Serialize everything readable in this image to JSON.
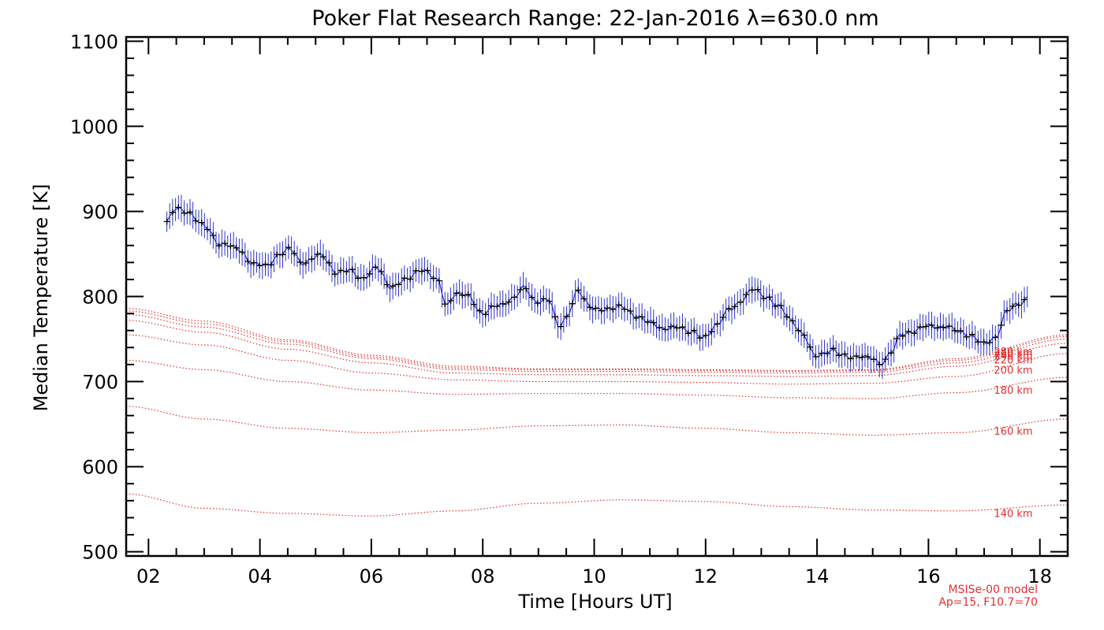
{
  "chart_data": {
    "type": "line",
    "title": "Poker Flat Research Range: 22-Jan-2016 λ=630.0 nm",
    "xlabel": "Time [Hours UT]",
    "ylabel": "Median Temperature [K]",
    "xlim": [
      1.6,
      18.5
    ],
    "ylim": [
      495,
      1105
    ],
    "x_ticks": [
      2,
      4,
      6,
      8,
      10,
      12,
      14,
      16,
      18
    ],
    "x_tick_labels": [
      "02",
      "04",
      "06",
      "08",
      "10",
      "12",
      "14",
      "16",
      "18"
    ],
    "y_ticks": [
      500,
      600,
      700,
      800,
      900,
      1000,
      1100
    ],
    "y_tick_labels": [
      "500",
      "600",
      "700",
      "800",
      "900",
      "1000",
      "1100"
    ],
    "measured": {
      "color": "#2a35c8",
      "marker_color": "#000000",
      "anchors": [
        [
          2.33,
          888
        ],
        [
          2.5,
          903
        ],
        [
          2.7,
          900
        ],
        [
          3.0,
          882
        ],
        [
          3.3,
          862
        ],
        [
          3.6,
          856
        ],
        [
          3.9,
          838
        ],
        [
          4.1,
          835
        ],
        [
          4.35,
          850
        ],
        [
          4.55,
          855
        ],
        [
          4.75,
          840
        ],
        [
          5.1,
          848
        ],
        [
          5.4,
          828
        ],
        [
          5.6,
          830
        ],
        [
          5.85,
          822
        ],
        [
          6.1,
          833
        ],
        [
          6.35,
          812
        ],
        [
          6.6,
          818
        ],
        [
          6.9,
          833
        ],
        [
          7.2,
          818
        ],
        [
          7.35,
          790
        ],
        [
          7.5,
          803
        ],
        [
          7.75,
          800
        ],
        [
          8.0,
          780
        ],
        [
          8.3,
          790
        ],
        [
          8.55,
          798
        ],
        [
          8.75,
          810
        ],
        [
          8.95,
          795
        ],
        [
          9.2,
          795
        ],
        [
          9.35,
          765
        ],
        [
          9.5,
          776
        ],
        [
          9.7,
          805
        ],
        [
          9.95,
          788
        ],
        [
          10.2,
          783
        ],
        [
          10.5,
          790
        ],
        [
          10.75,
          775
        ],
        [
          11.0,
          772
        ],
        [
          11.25,
          760
        ],
        [
          11.5,
          766
        ],
        [
          11.75,
          757
        ],
        [
          11.95,
          752
        ],
        [
          12.2,
          766
        ],
        [
          12.45,
          786
        ],
        [
          12.65,
          796
        ],
        [
          12.85,
          808
        ],
        [
          13.1,
          800
        ],
        [
          13.3,
          788
        ],
        [
          13.55,
          772
        ],
        [
          13.75,
          755
        ],
        [
          13.95,
          730
        ],
        [
          14.25,
          737
        ],
        [
          14.45,
          730
        ],
        [
          14.7,
          730
        ],
        [
          14.95,
          727
        ],
        [
          15.15,
          722
        ],
        [
          15.35,
          735
        ],
        [
          15.5,
          755
        ],
        [
          15.75,
          760
        ],
        [
          16.0,
          765
        ],
        [
          16.3,
          765
        ],
        [
          16.55,
          758
        ],
        [
          16.75,
          755
        ],
        [
          17.0,
          743
        ],
        [
          17.2,
          752
        ],
        [
          17.4,
          782
        ],
        [
          17.6,
          790
        ],
        [
          17.8,
          800
        ]
      ]
    },
    "model": {
      "color": "#e03030",
      "note_line1": "MSISe-00 model",
      "note_line2": "Ap=15, F10.7=70",
      "curves": [
        {
          "label": "140 km",
          "points": [
            [
              1.6,
              568
            ],
            [
              3.0,
              551
            ],
            [
              4.5,
              545
            ],
            [
              6.0,
              542
            ],
            [
              7.5,
              548
            ],
            [
              9.0,
              557
            ],
            [
              10.5,
              561
            ],
            [
              12.0,
              559
            ],
            [
              13.5,
              553
            ],
            [
              15.0,
              549
            ],
            [
              16.5,
              548
            ],
            [
              18.5,
              555
            ]
          ]
        },
        {
          "label": "160 km",
          "points": [
            [
              1.6,
              671
            ],
            [
              3.0,
              656
            ],
            [
              4.5,
              645
            ],
            [
              6.0,
              640
            ],
            [
              7.5,
              643
            ],
            [
              9.0,
              648
            ],
            [
              10.5,
              649
            ],
            [
              12.0,
              645
            ],
            [
              13.5,
              640
            ],
            [
              15.0,
              637
            ],
            [
              16.5,
              640
            ],
            [
              18.5,
              656
            ]
          ]
        },
        {
          "label": "180 km",
          "points": [
            [
              1.6,
              725
            ],
            [
              3.0,
              714
            ],
            [
              4.5,
              700
            ],
            [
              6.0,
              690
            ],
            [
              7.5,
              685
            ],
            [
              9.0,
              686
            ],
            [
              10.5,
              686
            ],
            [
              12.0,
              684
            ],
            [
              13.5,
              681
            ],
            [
              15.0,
              680
            ],
            [
              16.5,
              687
            ],
            [
              18.5,
              705
            ]
          ]
        },
        {
          "label": "200 km",
          "points": [
            [
              1.6,
              755
            ],
            [
              3.0,
              743
            ],
            [
              4.5,
              725
            ],
            [
              6.0,
              710
            ],
            [
              7.5,
              702
            ],
            [
              9.0,
              700
            ],
            [
              10.5,
              700
            ],
            [
              12.0,
              699
            ],
            [
              13.5,
              697
            ],
            [
              15.0,
              698
            ],
            [
              16.5,
              706
            ],
            [
              18.5,
              733
            ]
          ]
        },
        {
          "label": "220 km",
          "points": [
            [
              1.6,
              772
            ],
            [
              3.0,
              758
            ],
            [
              4.5,
              738
            ],
            [
              6.0,
              722
            ],
            [
              7.5,
              710
            ],
            [
              9.0,
              708
            ],
            [
              10.5,
              708
            ],
            [
              12.0,
              707
            ],
            [
              13.5,
              706
            ],
            [
              15.0,
              707
            ],
            [
              16.5,
              718
            ],
            [
              18.5,
              745
            ]
          ]
        },
        {
          "label": "240 km",
          "points": [
            [
              1.6,
              779
            ],
            [
              3.0,
              764
            ],
            [
              4.5,
              744
            ],
            [
              6.0,
              727
            ],
            [
              7.5,
              714
            ],
            [
              9.0,
              712
            ],
            [
              10.5,
              712
            ],
            [
              12.0,
              711
            ],
            [
              13.5,
              710
            ],
            [
              15.0,
              711
            ],
            [
              16.5,
              722
            ],
            [
              18.5,
              750
            ]
          ]
        },
        {
          "label": "260 km",
          "points": [
            [
              1.6,
              783
            ],
            [
              3.0,
              768
            ],
            [
              4.5,
              747
            ],
            [
              6.0,
              729
            ],
            [
              7.5,
              716
            ],
            [
              9.0,
              714
            ],
            [
              10.5,
              714
            ],
            [
              12.0,
              713
            ],
            [
              13.5,
              712
            ],
            [
              15.0,
              713
            ],
            [
              16.5,
              725
            ],
            [
              18.5,
              753
            ]
          ]
        },
        {
          "label": "280 km",
          "points": [
            [
              1.6,
              786
            ],
            [
              3.0,
              771
            ],
            [
              4.5,
              749
            ],
            [
              6.0,
              731
            ],
            [
              7.5,
              718
            ],
            [
              9.0,
              715
            ],
            [
              10.5,
              715
            ],
            [
              12.0,
              714
            ],
            [
              13.5,
              713
            ],
            [
              15.0,
              714
            ],
            [
              16.5,
              727
            ],
            [
              18.5,
              755
            ]
          ]
        }
      ]
    }
  }
}
